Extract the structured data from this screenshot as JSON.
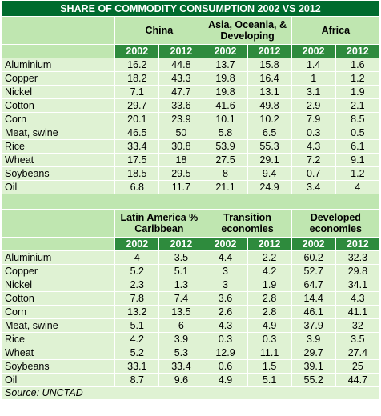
{
  "title": "SHARE OF COMMODITY CONSUMPTION 2002 VS 2012",
  "years": [
    "2002",
    "2012"
  ],
  "table1": {
    "groups": [
      "China",
      "Asia, Oceania, & Developing",
      "Africa"
    ],
    "rows": [
      {
        "label": "Aluminium",
        "values": [
          "16.2",
          "44.8",
          "13.7",
          "15.8",
          "1.4",
          "1.6"
        ]
      },
      {
        "label": "Copper",
        "values": [
          "18.2",
          "43.3",
          "19.8",
          "16.4",
          "1",
          "1.2"
        ]
      },
      {
        "label": "Nickel",
        "values": [
          "7.1",
          "47.7",
          "19.8",
          "13.1",
          "3.1",
          "1.9"
        ]
      },
      {
        "label": "Cotton",
        "values": [
          "29.7",
          "33.6",
          "41.6",
          "49.8",
          "2.9",
          "2.1"
        ]
      },
      {
        "label": "Corn",
        "values": [
          "20.1",
          "23.9",
          "10.1",
          "10.2",
          "7.9",
          "8.5"
        ]
      },
      {
        "label": "Meat, swine",
        "values": [
          "46.5",
          "50",
          "5.8",
          "6.5",
          "0.3",
          "0.5"
        ]
      },
      {
        "label": "Rice",
        "values": [
          "33.4",
          "30.8",
          "53.9",
          "55.3",
          "4.3",
          "6.1"
        ]
      },
      {
        "label": "Wheat",
        "values": [
          "17.5",
          "18",
          "27.5",
          "29.1",
          "7.2",
          "9.1"
        ]
      },
      {
        "label": "Soybeans",
        "values": [
          "18.5",
          "29.5",
          "8",
          "9.4",
          "0.7",
          "1.2"
        ]
      },
      {
        "label": "Oil",
        "values": [
          "6.8",
          "11.7",
          "21.1",
          "24.9",
          "3.4",
          "4"
        ]
      }
    ]
  },
  "table2": {
    "groups": [
      "Latin America % Caribbean",
      "Transition economies",
      "Developed economies"
    ],
    "rows": [
      {
        "label": "Aluminium",
        "values": [
          "4",
          "3.5",
          "4.4",
          "2.2",
          "60.2",
          "32.3"
        ]
      },
      {
        "label": "Copper",
        "values": [
          "5.2",
          "5.1",
          "3",
          "4.2",
          "52.7",
          "29.8"
        ]
      },
      {
        "label": "Nickel",
        "values": [
          "2.3",
          "1.3",
          "3",
          "1.9",
          "64.7",
          "34.1"
        ]
      },
      {
        "label": "Cotton",
        "values": [
          "7.8",
          "7.4",
          "3.6",
          "2.8",
          "14.4",
          "4.3"
        ]
      },
      {
        "label": "Corn",
        "values": [
          "13.2",
          "13.5",
          "2.6",
          "2.8",
          "46.1",
          "41.1"
        ]
      },
      {
        "label": "Meat, swine",
        "values": [
          "5.1",
          "6",
          "4.3",
          "4.9",
          "37.9",
          "32"
        ]
      },
      {
        "label": "Rice",
        "values": [
          "4.2",
          "3.9",
          "0.3",
          "0.3",
          "3.9",
          "3.5"
        ]
      },
      {
        "label": "Wheat",
        "values": [
          "5.2",
          "5.3",
          "12.9",
          "11.1",
          "29.7",
          "27.4"
        ]
      },
      {
        "label": "Soybeans",
        "values": [
          "33.1",
          "33.4",
          "0.6",
          "1.5",
          "39.1",
          "25"
        ]
      },
      {
        "label": "Oil",
        "values": [
          "8.7",
          "9.6",
          "4.9",
          "5.1",
          "55.2",
          "44.7"
        ]
      }
    ]
  },
  "source": "Source: UNCTAD"
}
